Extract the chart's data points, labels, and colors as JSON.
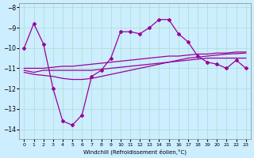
{
  "xlabel": "Windchill (Refroidissement éolien,°C)",
  "ylabel": "",
  "background_color": "#cceeff",
  "grid_color": "#aaddcc",
  "line_color": "#990099",
  "x": [
    0,
    1,
    2,
    3,
    4,
    5,
    6,
    7,
    8,
    9,
    10,
    11,
    12,
    13,
    14,
    15,
    16,
    17,
    18,
    19,
    20,
    21,
    22,
    23
  ],
  "line1": [
    -10.0,
    -8.8,
    -9.8,
    -12.0,
    -13.6,
    -13.8,
    -13.3,
    -11.4,
    -11.1,
    -10.5,
    -9.2,
    -9.2,
    -9.3,
    -9.0,
    -8.6,
    -8.6,
    -9.3,
    -9.7,
    -10.4,
    -10.7,
    -10.8,
    -11.0,
    -10.6,
    -11.0
  ],
  "line2": [
    -11.1,
    -11.2,
    -11.1,
    -11.1,
    -11.1,
    -11.1,
    -11.1,
    -11.1,
    -11.05,
    -11.0,
    -10.95,
    -10.9,
    -10.85,
    -10.8,
    -10.75,
    -10.7,
    -10.65,
    -10.6,
    -10.55,
    -10.5,
    -10.5,
    -10.5,
    -10.5,
    -10.5
  ],
  "line3": [
    -11.0,
    -11.0,
    -11.0,
    -10.95,
    -10.9,
    -10.9,
    -10.85,
    -10.8,
    -10.75,
    -10.7,
    -10.65,
    -10.6,
    -10.55,
    -10.5,
    -10.45,
    -10.4,
    -10.4,
    -10.35,
    -10.3,
    -10.3,
    -10.25,
    -10.25,
    -10.2,
    -10.2
  ],
  "line4": [
    -11.2,
    -11.3,
    -11.35,
    -11.4,
    -11.5,
    -11.55,
    -11.55,
    -11.5,
    -11.4,
    -11.3,
    -11.2,
    -11.1,
    -11.0,
    -10.9,
    -10.8,
    -10.7,
    -10.6,
    -10.5,
    -10.45,
    -10.4,
    -10.35,
    -10.3,
    -10.28,
    -10.25
  ],
  "ylim": [
    -14.5,
    -7.8
  ],
  "xlim": [
    -0.5,
    23.5
  ],
  "yticks": [
    -8,
    -9,
    -10,
    -11,
    -12,
    -13,
    -14
  ],
  "xticks": [
    0,
    1,
    2,
    3,
    4,
    5,
    6,
    7,
    8,
    9,
    10,
    11,
    12,
    13,
    14,
    15,
    16,
    17,
    18,
    19,
    20,
    21,
    22,
    23
  ],
  "xtick_labels": [
    "0",
    "1",
    "2",
    "3",
    "4",
    "5",
    "6",
    "7",
    "8",
    "9",
    "10",
    "11",
    "12",
    "13",
    "14",
    "15",
    "16",
    "17",
    "18",
    "19",
    "20",
    "21",
    "22",
    "23"
  ]
}
